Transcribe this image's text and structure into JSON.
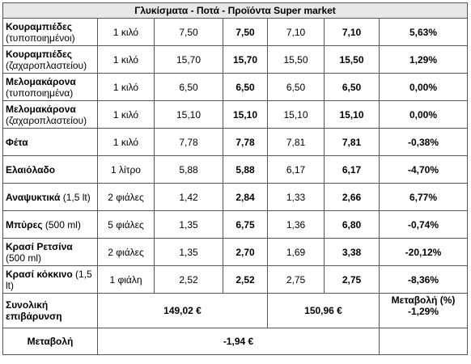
{
  "table": {
    "title": "Γλυκίσματα -  Ποτά - Προϊόντα Super market",
    "rows": [
      {
        "name": "Κουραμπιέδες",
        "note": "(τυποποιημένοι)",
        "qty": "1 κιλό",
        "cells": [
          "7,50",
          "7,50",
          "7,10",
          "7,10",
          "5,63%"
        ]
      },
      {
        "name": "Κουραμπιέδες",
        "note": "(ζαχαροπλαστείου)",
        "qty": "1 κιλό",
        "cells": [
          "15,70",
          "15,70",
          "15,50",
          "15,50",
          "1,29%"
        ]
      },
      {
        "name": "Μελομακάρονα",
        "note": "(τυποποιημένα)",
        "qty": "1 κιλό",
        "cells": [
          "6,50",
          "6,50",
          "6,50",
          "6,50",
          "0,00%"
        ]
      },
      {
        "name": "Μελομακάρονα",
        "note": "(ζαχαροπλαστείου)",
        "qty": "1 κιλό",
        "cells": [
          "15,10",
          "15,10",
          "15,10",
          "15,10",
          "0,00%"
        ]
      },
      {
        "name": "Φέτα",
        "qty": "1 κιλό",
        "cells": [
          "7,78",
          "7,78",
          "7,81",
          "7,81",
          "-0,38%"
        ]
      },
      {
        "name": "Ελαιόλαδο",
        "qty": "1 λίτρο",
        "cells": [
          "5,88",
          "5,88",
          "6,17",
          "6,17",
          "-4,70%"
        ]
      },
      {
        "name": "Αναψυκτικά",
        "note": "(1,5 lt)",
        "qty": "2 φιάλες",
        "cells": [
          "1,42",
          "2,84",
          "1,33",
          "2,66",
          "6,77%"
        ]
      },
      {
        "name": "Μπύρες",
        "note": "(500 ml)",
        "qty": "5 φιάλες",
        "cells": [
          "1,35",
          "6,75",
          "1,36",
          "6,80",
          "-0,74%"
        ]
      },
      {
        "name": "Κρασί Ρετσίνα",
        "note": "(500 ml)",
        "qty": "2 φιάλες",
        "cells": [
          "1,35",
          "2,70",
          "1,69",
          "3,38",
          "-20,12%"
        ]
      },
      {
        "name": "Κρασί κόκκινο",
        "note": "(1,5 lt)",
        "qty": "1 φιάλη",
        "cells": [
          "2,52",
          "2,52",
          "2,75",
          "2,75",
          "-8,36%"
        ]
      }
    ],
    "summary": {
      "label": "Συνολική επιβάρυνση",
      "total1": "149,02 €",
      "total2": "150,96 €",
      "change_label": "Μεταβολή (%)",
      "change": "-1,29%"
    },
    "difference": {
      "label": "Μεταβολή",
      "value": "-1,94 €"
    }
  }
}
